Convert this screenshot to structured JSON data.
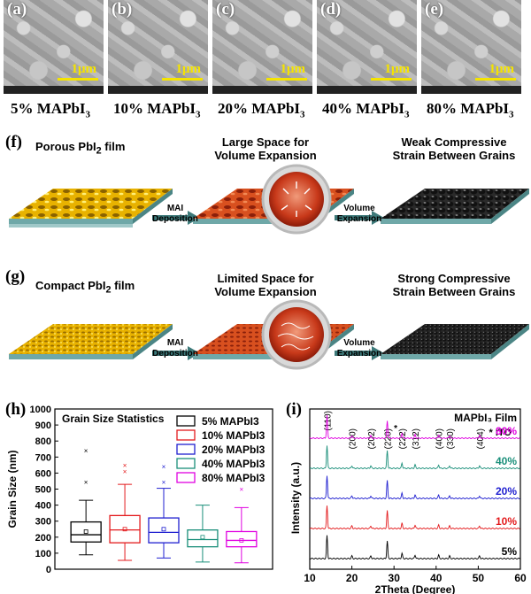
{
  "sem_panels": [
    {
      "letter": "(a)",
      "scale": "1μm",
      "label_main": "5% MAPbI",
      "label_sub": "3"
    },
    {
      "letter": "(b)",
      "scale": "1μm",
      "label_main": "10% MAPbI",
      "label_sub": "3"
    },
    {
      "letter": "(c)",
      "scale": "1μm",
      "label_main": "20% MAPbI",
      "label_sub": "3"
    },
    {
      "letter": "(d)",
      "scale": "1μm",
      "label_main": "40% MAPbI",
      "label_sub": "3"
    },
    {
      "letter": "(e)",
      "scale": "1μm",
      "label_main": "80% MAPbI",
      "label_sub": "3"
    }
  ],
  "schematic_f": {
    "letter": "(f)",
    "film_title": "Porous PbI",
    "film_title_sub": "2",
    "film_title_end": " film",
    "mid_title_1": "Large Space for",
    "mid_title_2": "Volume Expansion",
    "right_title_1": "Weak Compressive",
    "right_title_2": "Strain Between Grains",
    "arrow1_1": "MAI",
    "arrow1_2": "Deposition",
    "arrow2_1": "Volume",
    "arrow2_2": "Expansion"
  },
  "schematic_g": {
    "letter": "(g)",
    "film_title": "Compact PbI",
    "film_title_sub": "2",
    "film_title_end": " film",
    "mid_title_1": "Limited Space for",
    "mid_title_2": "Volume Expansion",
    "right_title_1": "Strong Compressive",
    "right_title_2": "Strain Between Grains",
    "arrow1_1": "MAI",
    "arrow1_2": "Deposition",
    "arrow2_1": "Volume",
    "arrow2_2": "Expansion"
  },
  "chart_data": [
    {
      "type": "box",
      "panel": "(h)",
      "title": "Grain Size Statistics",
      "ylabel": "Grain Size (nm)",
      "ylim": [
        0,
        1000
      ],
      "yticks": [
        0,
        100,
        200,
        300,
        400,
        500,
        600,
        700,
        800,
        900,
        1000
      ],
      "legend_placement": "top-right",
      "series": [
        {
          "name": "5% MAPbI3",
          "color": "#000000",
          "min": 90,
          "q1": 170,
          "median": 215,
          "q3": 295,
          "max": 430,
          "mean": 235,
          "outliers": [
            545,
            740
          ]
        },
        {
          "name": "10% MAPbI3",
          "color": "#e31a1c",
          "min": 55,
          "q1": 165,
          "median": 245,
          "q3": 335,
          "max": 530,
          "mean": 250,
          "outliers": [
            610,
            650
          ]
        },
        {
          "name": "20% MAPbI3",
          "color": "#1f1fd0",
          "min": 70,
          "q1": 165,
          "median": 230,
          "q3": 320,
          "max": 505,
          "mean": 250,
          "outliers": [
            545,
            640
          ]
        },
        {
          "name": "40% MAPbI3",
          "color": "#1a8f7a",
          "min": 45,
          "q1": 140,
          "median": 185,
          "q3": 245,
          "max": 400,
          "mean": 200,
          "outliers": []
        },
        {
          "name": "80% MAPbI3",
          "color": "#e000e0",
          "min": 40,
          "q1": 140,
          "median": 180,
          "q3": 235,
          "max": 385,
          "mean": 180,
          "outliers": [
            500
          ]
        }
      ]
    },
    {
      "type": "line",
      "panel": "(i)",
      "legend_title": "MAPbI₃ Film",
      "ito_label": "* ITO",
      "xlabel": "2Theta (Degree)",
      "ylabel": "Intensity (a.u.)",
      "xlim": [
        10,
        60
      ],
      "xticks": [
        10,
        20,
        30,
        40,
        50,
        60
      ],
      "peaks": [
        {
          "label": "(110)",
          "x": 14.1
        },
        {
          "label": "(200)",
          "x": 20.0
        },
        {
          "label": "(202)",
          "x": 24.5
        },
        {
          "label": "(220)",
          "x": 28.4
        },
        {
          "label": "(222)",
          "x": 31.9
        },
        {
          "label": "(312)",
          "x": 35.0
        },
        {
          "label": "(400)",
          "x": 40.6
        },
        {
          "label": "(330)",
          "x": 43.2
        },
        {
          "label": "(404)",
          "x": 50.3
        }
      ],
      "series": [
        {
          "name": "5%",
          "color": "#000000"
        },
        {
          "name": "10%",
          "color": "#e31a1c"
        },
        {
          "name": "20%",
          "color": "#1f1fd0"
        },
        {
          "name": "40%",
          "color": "#1a8f7a"
        },
        {
          "name": "80%",
          "color": "#e000e0"
        }
      ]
    }
  ]
}
